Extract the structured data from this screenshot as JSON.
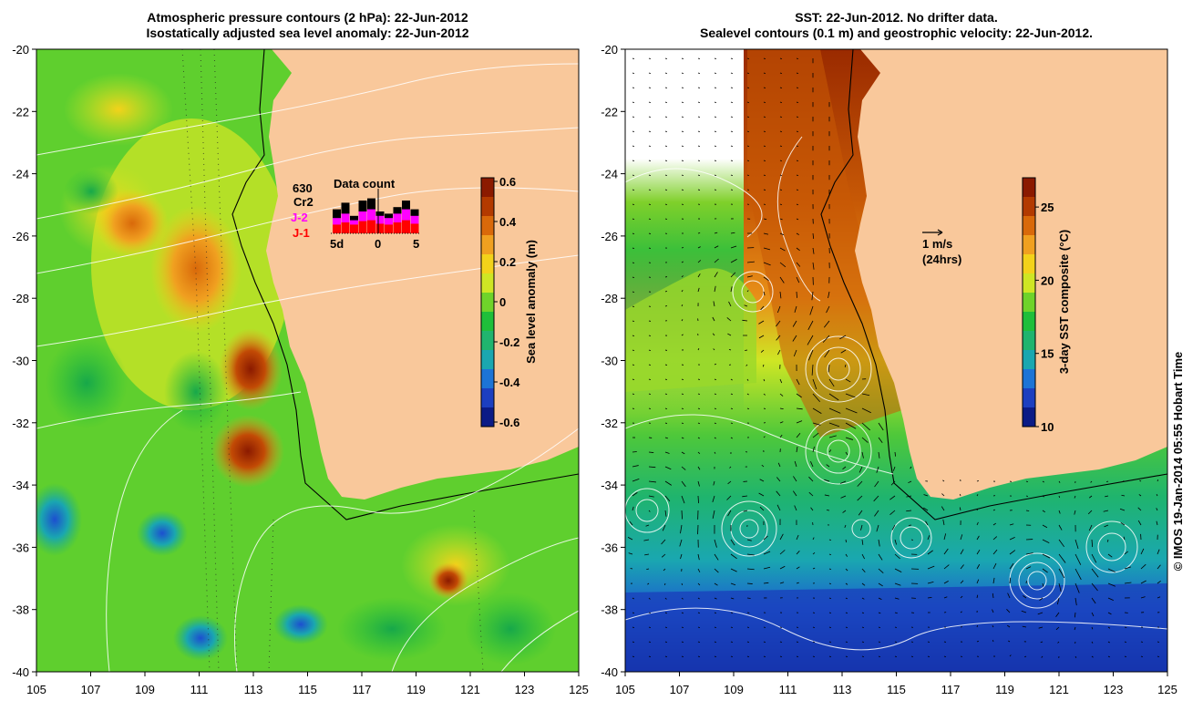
{
  "left_panel": {
    "title_line1": "Atmospheric pressure contours (2 hPa): 22-Jun-2012",
    "title_line2": "Isostatically adjusted sea level anomaly: 22-Jun-2012",
    "colorbar": {
      "label": "Sea level anomaly (m)",
      "ticks": [
        "0.6",
        "0.4",
        "0.2",
        "0",
        "-0.2",
        "-0.4",
        "-0.6"
      ],
      "colors": [
        "#8b1a00",
        "#b33a00",
        "#d9690a",
        "#f0a020",
        "#f3d21a",
        "#cfe624",
        "#6fd32a",
        "#1fbf3a",
        "#20b46e",
        "#1aa7b0",
        "#1c74d6",
        "#1c3fc0",
        "#0b1b86"
      ]
    },
    "data_count": {
      "title": "Data count",
      "count": "630",
      "sat_cr2": "Cr2",
      "sat_j2": "J-2",
      "sat_j1": "J-1",
      "axis_labels": [
        "5d",
        "0",
        "5"
      ],
      "bars_cr2": [
        0.55,
        0.7,
        0.4,
        0.75,
        0.8,
        0.5,
        0.45,
        0.6,
        0.75,
        0.55
      ],
      "bars_j2": [
        0.35,
        0.45,
        0.3,
        0.5,
        0.55,
        0.4,
        0.35,
        0.45,
        0.55,
        0.4
      ],
      "bars_j1": [
        0.2,
        0.25,
        0.2,
        0.28,
        0.3,
        0.22,
        0.2,
        0.25,
        0.3,
        0.22
      ]
    }
  },
  "right_panel": {
    "title_line1": "SST: 22-Jun-2012. No drifter data.",
    "title_line2": "Sealevel contours (0.1 m) and geostrophic velocity: 22-Jun-2012.",
    "colorbar": {
      "label": "3-day SST composite (°C)",
      "ticks": [
        "25",
        "20",
        "15",
        "10"
      ],
      "tick_values": [
        25,
        20,
        15,
        10
      ],
      "range": [
        10,
        27
      ],
      "colors": [
        "#8b1a00",
        "#b33a00",
        "#d9690a",
        "#f0a020",
        "#f3d21a",
        "#cfe624",
        "#6fd32a",
        "#1fbf3a",
        "#20b46e",
        "#1aa7b0",
        "#1c74d6",
        "#1c3fc0",
        "#0b1b86"
      ]
    },
    "velocity_legend": {
      "speed": "1 m/s",
      "duration": "(24hrs)"
    }
  },
  "axes": {
    "lon_ticks": [
      "105",
      "107",
      "109",
      "111",
      "113",
      "115",
      "117",
      "119",
      "121",
      "123",
      "125"
    ],
    "lat_ticks": [
      "-20",
      "-22",
      "-24",
      "-26",
      "-28",
      "-30",
      "-32",
      "-34",
      "-36",
      "-38",
      "-40"
    ],
    "lon_range": [
      105,
      125
    ],
    "lat_range": [
      -40,
      -20
    ]
  },
  "credit": "© IMOS 19-Jan-2014 05:55 Hobart Time",
  "colors": {
    "land": "#f9c89b",
    "ocean_mid": "#6fd32a",
    "warm": "#d9690a",
    "cold": "#0b1b86"
  }
}
